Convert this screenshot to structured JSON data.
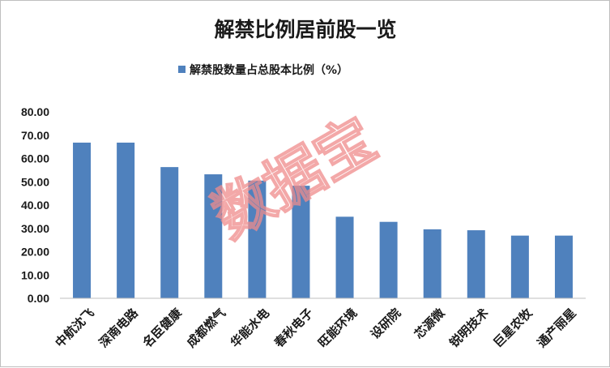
{
  "chart_data": {
    "type": "bar",
    "title": "解禁比例居前股一览",
    "legend": "解禁股数量占总股本比例（%）",
    "legend_position": "top",
    "categories": [
      "中航沈飞",
      "深南电路",
      "名臣健康",
      "成都燃气",
      "华能水电",
      "春秋电子",
      "旺能环境",
      "设研院",
      "芯源微",
      "锐明技术",
      "巨星农牧",
      "通产丽星"
    ],
    "values": [
      66.8,
      66.8,
      56.3,
      53.2,
      50.5,
      48.3,
      35.0,
      32.8,
      29.6,
      29.2,
      26.9,
      26.9
    ],
    "ylim": [
      0,
      80
    ],
    "yticks": [
      "0.00",
      "10.00",
      "20.00",
      "30.00",
      "40.00",
      "50.00",
      "60.00",
      "70.00",
      "80.00"
    ],
    "bar_color": "#4f81bd",
    "grid": false
  },
  "watermark": "数据宝",
  "watermark_color": "#f08c8c"
}
